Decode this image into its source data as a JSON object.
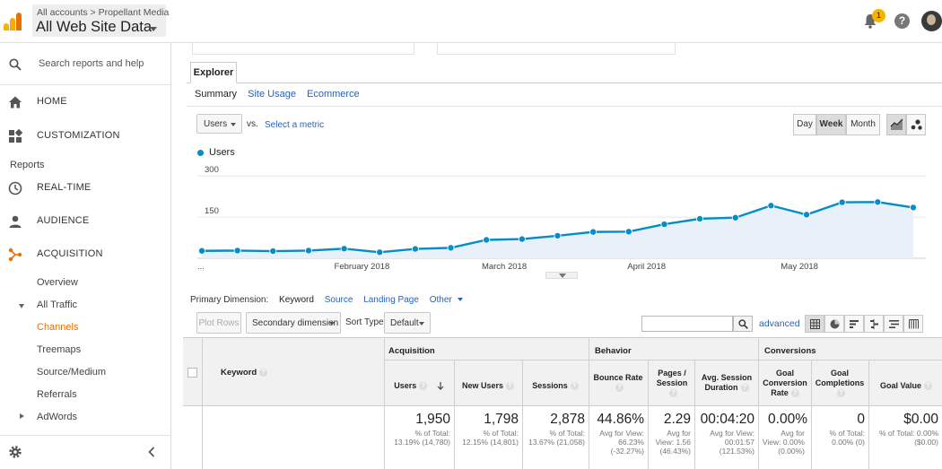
{
  "header": {
    "breadcrumb": "All accounts > Propellant Media",
    "view_name": "All Web Site Data",
    "notification_count": "1",
    "help_glyph": "?"
  },
  "sidebar": {
    "search_placeholder": "Search reports and help",
    "home": "HOME",
    "customization": "CUSTOMIZATION",
    "reports_heading": "Reports",
    "realtime": "REAL-TIME",
    "audience": "AUDIENCE",
    "acquisition": "ACQUISITION",
    "overview": "Overview",
    "all_traffic": "All Traffic",
    "channels": "Channels",
    "treemaps": "Treemaps",
    "source_medium": "Source/Medium",
    "referrals": "Referrals",
    "adwords": "AdWords",
    "accent_color": "#e8710a"
  },
  "explorer": {
    "tab_label": "Explorer",
    "subtabs": [
      "Summary",
      "Site Usage",
      "Ecommerce"
    ],
    "metric_select": "Users",
    "vs_label": "vs.",
    "select_metric": "Select a metric",
    "periods": [
      "Day",
      "Week",
      "Month"
    ],
    "active_period": "Week"
  },
  "chart_data": {
    "type": "area",
    "series": [
      {
        "name": "Users",
        "color": "#058dc7",
        "values": [
          27,
          28,
          26,
          28,
          35,
          22,
          34,
          38,
          67,
          70,
          82,
          96,
          97,
          124,
          144,
          148,
          192,
          159,
          204,
          205,
          185
        ]
      }
    ],
    "y_tick_labels": [
      "300",
      "150"
    ],
    "ylim": [
      0,
      340
    ],
    "x_tick_labels": [
      "...",
      "February 2018",
      "March 2018",
      "April 2018",
      "May 2018"
    ],
    "grid": true
  },
  "primary_dimension": {
    "label": "Primary Dimension:",
    "current": "Keyword",
    "options": [
      "Source",
      "Landing Page",
      "Other"
    ]
  },
  "toolbar": {
    "plot_rows": "Plot Rows",
    "secondary_dimension": "Secondary dimension",
    "sort_type_label": "Sort Type:",
    "sort_type_value": "Default",
    "advanced": "advanced"
  },
  "table": {
    "keyword_header": "Keyword",
    "groups": [
      "Acquisition",
      "Behavior",
      "Conversions"
    ],
    "columns": [
      {
        "label": "Users",
        "value": "1,950",
        "sub": "% of Total: 13.19% (14,780)"
      },
      {
        "label": "New Users",
        "value": "1,798",
        "sub": "% of Total: 12.15% (14,801)"
      },
      {
        "label": "Sessions",
        "value": "2,878",
        "sub": "% of Total: 13.67% (21,058)"
      },
      {
        "label": "Bounce Rate",
        "value": "44.86%",
        "sub": "Avg for View: 66.23% (-32.27%)"
      },
      {
        "label": "Pages / Session",
        "value": "2.29",
        "sub": "Avg for View: 1.56 (46.43%)"
      },
      {
        "label": "Avg. Session Duration",
        "value": "00:04:20",
        "sub": "Avg for View: 00:01:57 (121.53%)"
      },
      {
        "label": "Goal Conversion Rate",
        "value": "0.00%",
        "sub": "Avg for View: 0.00% (0.00%)"
      },
      {
        "label": "Goal Completions",
        "value": "0",
        "sub": "% of Total: 0.00% (0)"
      },
      {
        "label": "Goal Value",
        "value": "$0.00",
        "sub": "% of Total: 0.00% ($0.00)"
      }
    ]
  }
}
